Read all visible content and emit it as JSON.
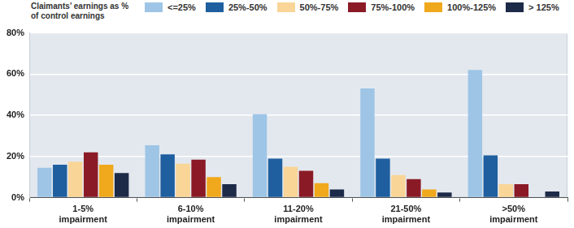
{
  "chart_data": {
    "type": "bar",
    "legend_title": "Claimants’ earnings as % of control earnings",
    "legend": "top-left",
    "categories": [
      "1-5% impairment",
      "6-10% impairment",
      "11-20% impairment",
      "21-50% impairment",
      ">50% impairment"
    ],
    "series": [
      {
        "name": "<=25%",
        "color": "#9ec5e6",
        "values": [
          14.5,
          25.5,
          40.5,
          53,
          62
        ]
      },
      {
        "name": "25%-50%",
        "color": "#1f5f9f",
        "values": [
          16,
          21,
          19,
          19,
          20.5
        ]
      },
      {
        "name": "50%-75%",
        "color": "#f9d597",
        "values": [
          17.5,
          16.5,
          15,
          11,
          6.5
        ]
      },
      {
        "name": "75%-100%",
        "color": "#8b1a27",
        "values": [
          22,
          18.5,
          13,
          9,
          6.5
        ]
      },
      {
        "name": "100%-125%",
        "color": "#f0a81c",
        "values": [
          16,
          10,
          7,
          4,
          0
        ]
      },
      {
        "name": "> 125%",
        "color": "#1d2a48",
        "values": [
          12,
          6.5,
          4,
          2.5,
          3
        ]
      }
    ],
    "ylim": [
      0,
      80
    ],
    "yticks": [
      {
        "value": 0,
        "label": "0%"
      },
      {
        "value": 20,
        "label": "20%"
      },
      {
        "value": 40,
        "label": "40%"
      },
      {
        "value": 60,
        "label": "60%"
      },
      {
        "value": 80,
        "label": "80%"
      }
    ],
    "grid": true
  }
}
